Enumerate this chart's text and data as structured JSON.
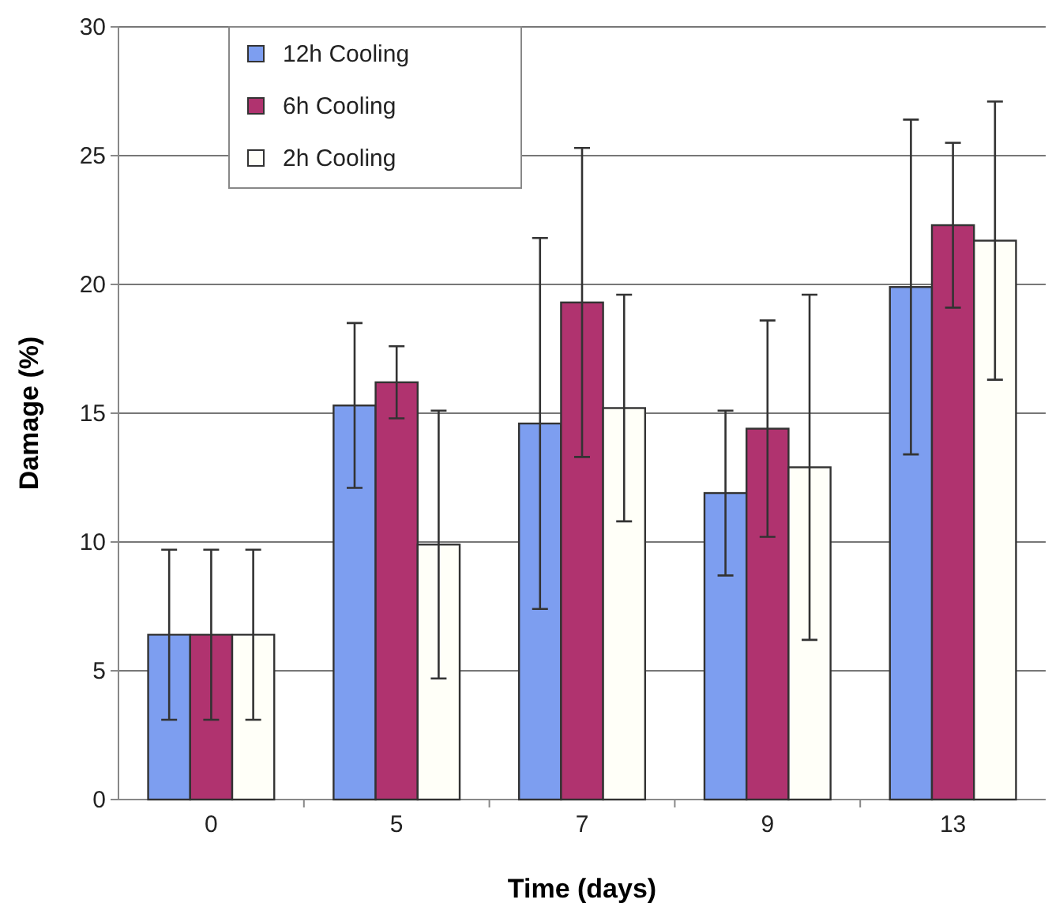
{
  "chart_data": {
    "type": "bar",
    "xlabel": "Time (days)",
    "ylabel": "Damage (%)",
    "categories": [
      "0",
      "5",
      "7",
      "9",
      "13"
    ],
    "series": [
      {
        "name": "12h Cooling",
        "color": "#7d9ef0",
        "values": [
          6.4,
          15.3,
          14.6,
          11.9,
          19.9
        ],
        "errors": [
          3.3,
          3.2,
          7.2,
          3.2,
          6.5
        ]
      },
      {
        "name": "6h Cooling",
        "color": "#b0336f",
        "values": [
          6.4,
          16.2,
          19.3,
          14.4,
          22.3
        ],
        "errors": [
          3.3,
          1.4,
          6,
          4.2,
          3.2
        ]
      },
      {
        "name": "2h Cooling",
        "color": "#fffff8",
        "values": [
          6.4,
          9.9,
          15.2,
          12.9,
          21.7
        ],
        "errors": [
          3.3,
          5.2,
          4.4,
          6.7,
          5.4
        ]
      }
    ],
    "ylim": [
      0,
      30
    ],
    "yticks": [
      0,
      5,
      10,
      15,
      20,
      25,
      30
    ],
    "grid": "y",
    "legend": "top left"
  }
}
